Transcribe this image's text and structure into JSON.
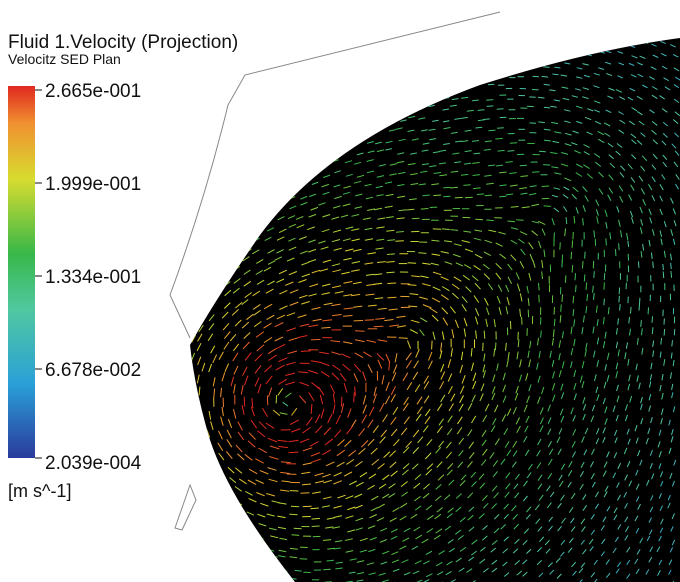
{
  "legend": {
    "title": "Fluid 1.Velocity (Projection)",
    "subtitle": "Velocitz SED Plan",
    "ticks": [
      "2.665e-001",
      "1.999e-001",
      "1.334e-001",
      "6.678e-002",
      "2.039e-004"
    ],
    "unit": "[m s^-1]"
  }
}
